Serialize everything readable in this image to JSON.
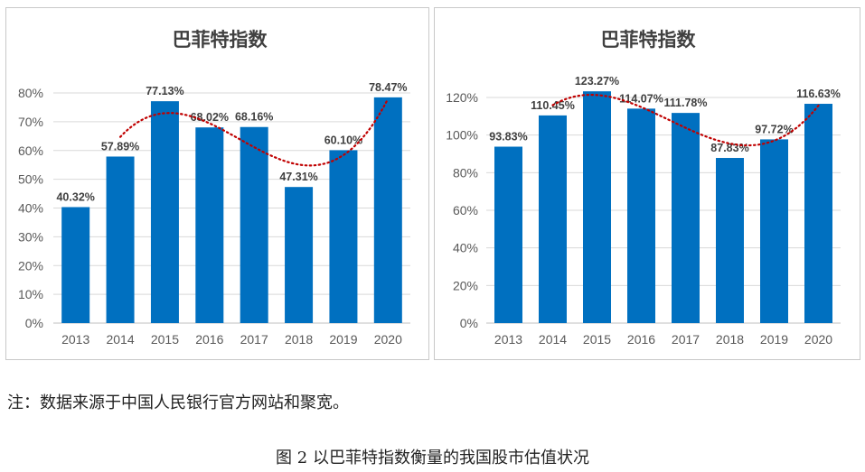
{
  "chart_data": [
    {
      "type": "bar",
      "title": "巴菲特指数",
      "categories": [
        "2013",
        "2014",
        "2015",
        "2016",
        "2017",
        "2018",
        "2019",
        "2020"
      ],
      "values": [
        40.32,
        57.89,
        77.13,
        68.02,
        68.16,
        47.31,
        60.1,
        78.47
      ],
      "value_labels": [
        "40.32%",
        "57.89%",
        "77.13%",
        "68.02%",
        "68.16%",
        "47.31%",
        "60.10%",
        "78.47%"
      ],
      "yticks": [
        "0%",
        "10%",
        "20%",
        "30%",
        "40%",
        "50%",
        "60%",
        "70%",
        "80%"
      ],
      "ylim": [
        0,
        80
      ],
      "grid": true,
      "trendline": "dotted polynomial",
      "colors": {
        "bar": "#0070c0",
        "trendline": "#c00000",
        "grid": "#d9d9d9"
      }
    },
    {
      "type": "bar",
      "title": "巴菲特指数",
      "categories": [
        "2013",
        "2014",
        "2015",
        "2016",
        "2017",
        "2018",
        "2019",
        "2020"
      ],
      "values": [
        93.83,
        110.45,
        123.27,
        114.07,
        111.78,
        87.83,
        97.72,
        116.63
      ],
      "value_labels": [
        "93.83%",
        "110.45%",
        "123.27%",
        "114.07%",
        "111.78%",
        "87.83%",
        "97.72%",
        "116.63%"
      ],
      "yticks": [
        "0%",
        "20%",
        "40%",
        "60%",
        "80%",
        "100%",
        "120%"
      ],
      "ylim": [
        0,
        120
      ],
      "grid": true,
      "trendline": "dotted polynomial",
      "colors": {
        "bar": "#0070c0",
        "trendline": "#c00000",
        "grid": "#d9d9d9"
      }
    }
  ],
  "note": "注：数据来源于中国人民银行官方网站和聚宽。",
  "caption": "图 2  以巴菲特指数衡量的我国股市估值状况"
}
